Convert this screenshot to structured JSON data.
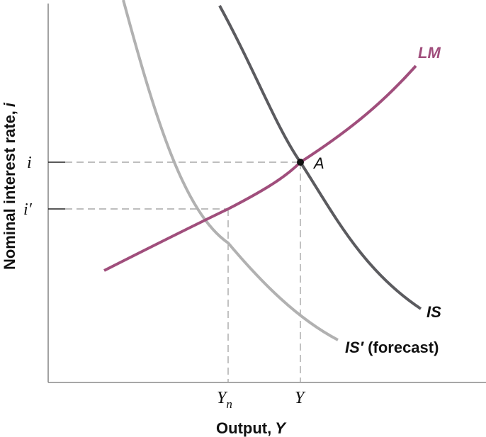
{
  "axes": {
    "y_title": "Nominal interest rate,",
    "y_symbol": "i",
    "x_title": "Output,",
    "x_symbol": "Y"
  },
  "ticks": {
    "i_label": "i",
    "i_prime_label": "i′",
    "yn_main": "Y",
    "yn_sub": "n",
    "y_label": "Y"
  },
  "curves": {
    "lm_label": "LM",
    "is_label": "IS",
    "is_prime_main": "IS′",
    "is_prime_note": " (forecast)"
  },
  "point": {
    "label": "A"
  },
  "colors": {
    "lm": "#a04e7c",
    "is": "#5b5b5f",
    "is_prime": "#b1b1b1",
    "axis": "#8a8a8a",
    "guide": "#a8a8a8",
    "text": "#111111",
    "point": "#111111"
  }
}
